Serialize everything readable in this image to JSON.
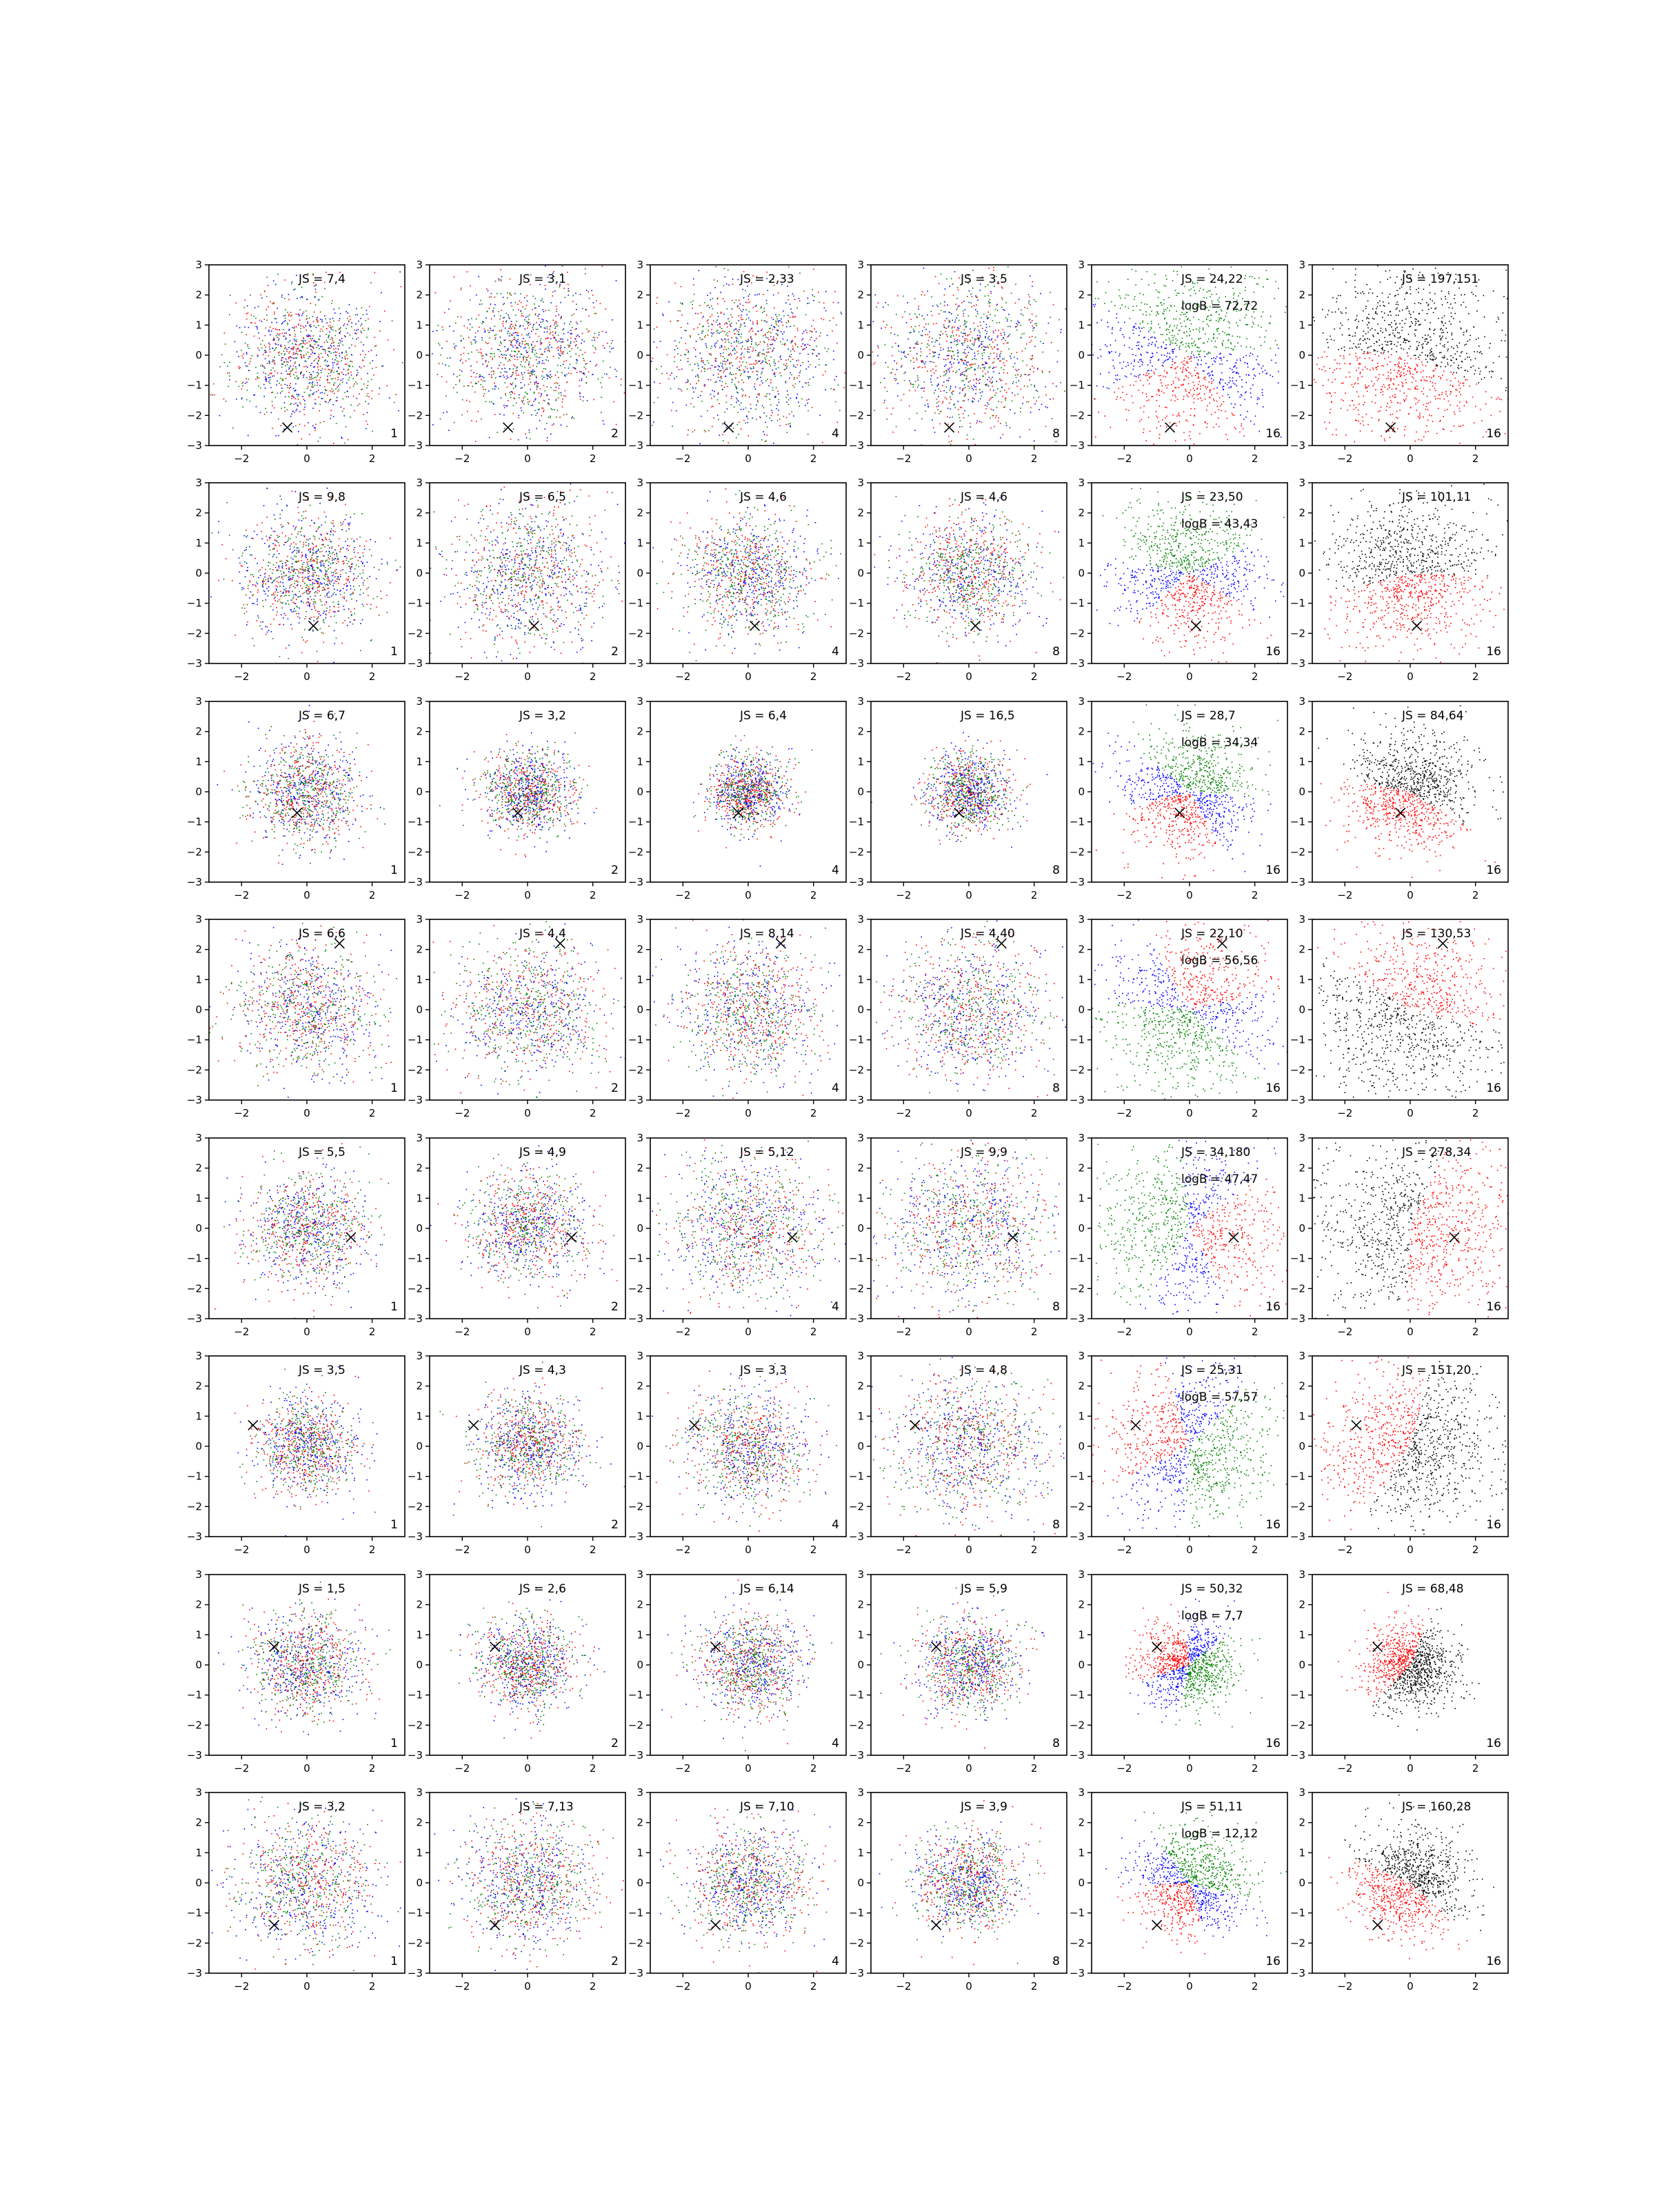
{
  "figure": {
    "grid": {
      "rows": 8,
      "cols": 6
    },
    "colors": {
      "1": "#0000ff",
      "2": "#ff0000",
      "3": "#008000",
      "4": "#000000"
    },
    "marker": "x"
  },
  "chart_data": {
    "type": "scatter",
    "grid_lines": false,
    "xlim": [
      -3,
      3
    ],
    "ylim": [
      -3,
      3
    ],
    "xticks": [
      -2,
      0,
      2
    ],
    "yticks": [
      -3,
      -2,
      -1,
      0,
      1,
      2,
      3
    ],
    "column_labels": [
      "1",
      "2",
      "4",
      "8",
      "16",
      "16"
    ],
    "column_palettes": [
      [
        1,
        2,
        3
      ],
      [
        1,
        2,
        3
      ],
      [
        1,
        2,
        3
      ],
      [
        1,
        2,
        3
      ],
      [
        2,
        1,
        3
      ],
      [
        2,
        4
      ]
    ],
    "rows": [
      {
        "marker": [
          -0.6,
          -2.4
        ],
        "spread": [
          1.15,
          1.3,
          1.3,
          1.35,
          1.45,
          1.45
        ],
        "js": [
          "JS = 7,4",
          "JS = 3,1",
          "JS = 2,33",
          "JS = 3,5",
          "JS = 24,22",
          "JS = 197,151"
        ],
        "logB": "logB = 72,72"
      },
      {
        "marker": [
          0.2,
          -1.75
        ],
        "spread": [
          1.0,
          1.2,
          1.0,
          1.0,
          1.1,
          1.2
        ],
        "js": [
          "JS = 9,8",
          "JS = 6,5",
          "JS = 4,6",
          "JS = 4,6",
          "JS = 23,50",
          "JS = 101,11"
        ],
        "logB": "logB = 43,43"
      },
      {
        "marker": [
          -0.3,
          -0.7
        ],
        "spread": [
          0.85,
          0.7,
          0.6,
          0.65,
          0.95,
          0.95
        ],
        "js": [
          "JS = 6,7",
          "JS = 3,2",
          "JS = 6,4",
          "JS = 16,5",
          "JS = 28,7",
          "JS = 84,64"
        ],
        "logB": "logB = 34,34"
      },
      {
        "marker": [
          1.0,
          2.2
        ],
        "spread": [
          1.1,
          1.1,
          1.1,
          1.15,
          1.3,
          1.4
        ],
        "js": [
          "JS = 6,6",
          "JS = 4,4",
          "JS = 8,14",
          "JS = 4,40",
          "JS = 22,10",
          "JS = 130,53"
        ],
        "logB": "logB = 56,56"
      },
      {
        "marker": [
          1.35,
          -0.3
        ],
        "spread": [
          0.95,
          0.9,
          1.2,
          1.25,
          1.45,
          1.5
        ],
        "js": [
          "JS = 5,5",
          "JS = 4,9",
          "JS = 5,12",
          "JS = 9,9",
          "JS = 34,180",
          "JS = 278,34"
        ],
        "logB": "logB = 47,47"
      },
      {
        "marker": [
          -1.65,
          0.7
        ],
        "spread": [
          0.8,
          0.8,
          0.95,
          1.15,
          1.2,
          1.3
        ],
        "js": [
          "JS = 3,5",
          "JS = 4,3",
          "JS = 3,3",
          "JS = 4,8",
          "JS = 25,31",
          "JS = 151,20"
        ],
        "logB": "logB = 57,57"
      },
      {
        "marker": [
          -1.0,
          0.6
        ],
        "spread": [
          0.85,
          0.75,
          0.8,
          0.8,
          0.7,
          0.7
        ],
        "js": [
          "JS = 1,5",
          "JS = 2,6",
          "JS = 6,14",
          "JS = 5,9",
          "JS = 50,32",
          "JS = 68,48"
        ],
        "logB": "logB = 7,7"
      },
      {
        "marker": [
          -1.0,
          -1.4
        ],
        "spread": [
          1.1,
          1.0,
          0.95,
          0.8,
          0.85,
          0.85
        ],
        "js": [
          "JS = 3,2",
          "JS = 7,13",
          "JS = 7,10",
          "JS = 3,9",
          "JS = 51,11",
          "JS = 160,28"
        ],
        "logB": "logB = 12,12"
      }
    ]
  }
}
